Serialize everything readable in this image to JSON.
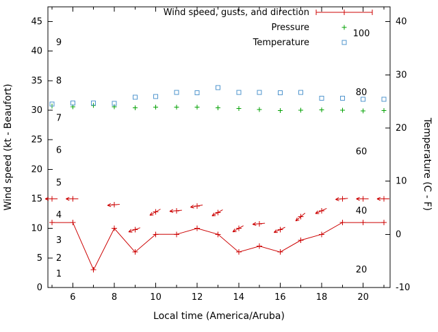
{
  "chart_data": {
    "type": "line",
    "title": "",
    "xlabel": "Local time (America/Aruba)",
    "ylabel_left": "Wind speed (kt - Beaufort)",
    "ylabel_right": "Temperature (C - F)",
    "legend": [
      {
        "key": "wind",
        "label": "Wind speed, gusts, and direction"
      },
      {
        "key": "pressure",
        "label": "Pressure"
      },
      {
        "key": "temperature",
        "label": "Temperature"
      }
    ],
    "colors": {
      "wind": "#cc0000",
      "pressure": "#00a000",
      "temperature": "#4f94cd",
      "axis": "#000000",
      "background": "#ffffff",
      "text": "#000000"
    },
    "axes": {
      "x_range": [
        4.8,
        21.3
      ],
      "y_left_range": [
        0,
        47.5
      ],
      "y_right_range": [
        -10,
        42.78
      ],
      "x_major_ticks": [
        6,
        8,
        10,
        12,
        14,
        16,
        18,
        20
      ],
      "x_minor_ticks": [
        5,
        7,
        9,
        11,
        13,
        15,
        17,
        19,
        21
      ],
      "y_left_ticks": [
        0,
        5,
        10,
        15,
        20,
        25,
        30,
        35,
        40,
        45
      ],
      "y_right_ticks": [
        -10,
        0,
        10,
        20,
        30,
        40
      ],
      "grid": false,
      "legend_position": "top-right-inside"
    },
    "beaufort_scale_labels": [
      {
        "label": "1",
        "kt": 2.3
      },
      {
        "label": "2",
        "kt": 5
      },
      {
        "label": "3",
        "kt": 8
      },
      {
        "label": "4",
        "kt": 12.3
      },
      {
        "label": "5",
        "kt": 17.7
      },
      {
        "label": "6",
        "kt": 23.2
      },
      {
        "label": "7",
        "kt": 28.7
      },
      {
        "label": "8",
        "kt": 35
      },
      {
        "label": "9",
        "kt": 41.5
      }
    ],
    "fahrenheit_scale_labels": [
      {
        "label": "20",
        "kt": 3
      },
      {
        "label": "40",
        "kt": 13
      },
      {
        "label": "60",
        "kt": 23
      },
      {
        "label": "80",
        "kt": 33
      },
      {
        "label": "100",
        "kt": 43
      }
    ],
    "x_hours": [
      5,
      6,
      7,
      8,
      9,
      10,
      11,
      12,
      13,
      14,
      15,
      16,
      17,
      18,
      19,
      20,
      21
    ],
    "series": {
      "wind_speed_kt": [
        11,
        11,
        3,
        10,
        6,
        9,
        9,
        10,
        9,
        6,
        7,
        6,
        8,
        9,
        11,
        11,
        11
      ],
      "wind_gusts": [
        {
          "x": 5,
          "kt": 15,
          "angle": 180
        },
        {
          "x": 6,
          "kt": 15,
          "angle": 180
        },
        {
          "x": 8,
          "kt": 14,
          "angle": 185
        },
        {
          "x": 9,
          "kt": 9.8,
          "angle": 200
        },
        {
          "x": 10,
          "kt": 12.8,
          "angle": 210
        },
        {
          "x": 11,
          "kt": 13,
          "angle": 185
        },
        {
          "x": 12,
          "kt": 13.8,
          "angle": 190
        },
        {
          "x": 13,
          "kt": 12.7,
          "angle": 210
        },
        {
          "x": 14,
          "kt": 10,
          "angle": 210
        },
        {
          "x": 15,
          "kt": 10.8,
          "angle": 185
        },
        {
          "x": 16,
          "kt": 9.8,
          "angle": 205
        },
        {
          "x": 17,
          "kt": 12,
          "angle": 220
        },
        {
          "x": 18,
          "kt": 13,
          "angle": 205
        },
        {
          "x": 19,
          "kt": 15,
          "angle": 185
        },
        {
          "x": 20,
          "kt": 15,
          "angle": 180
        },
        {
          "x": 21,
          "kt": 15,
          "angle": 180
        }
      ],
      "pressure_inhg": [
        30.7,
        30.6,
        30.8,
        30.6,
        30.4,
        30.5,
        30.5,
        30.5,
        30.4,
        30.3,
        30.1,
        29.95,
        30.0,
        30.05,
        30.0,
        29.9,
        29.95
      ],
      "temperature_c": [
        24.5,
        24.7,
        24.7,
        24.6,
        25.8,
        25.9,
        26.7,
        26.6,
        27.6,
        26.7,
        26.7,
        26.6,
        26.7,
        25.6,
        25.6,
        25.4,
        25.4
      ]
    }
  }
}
